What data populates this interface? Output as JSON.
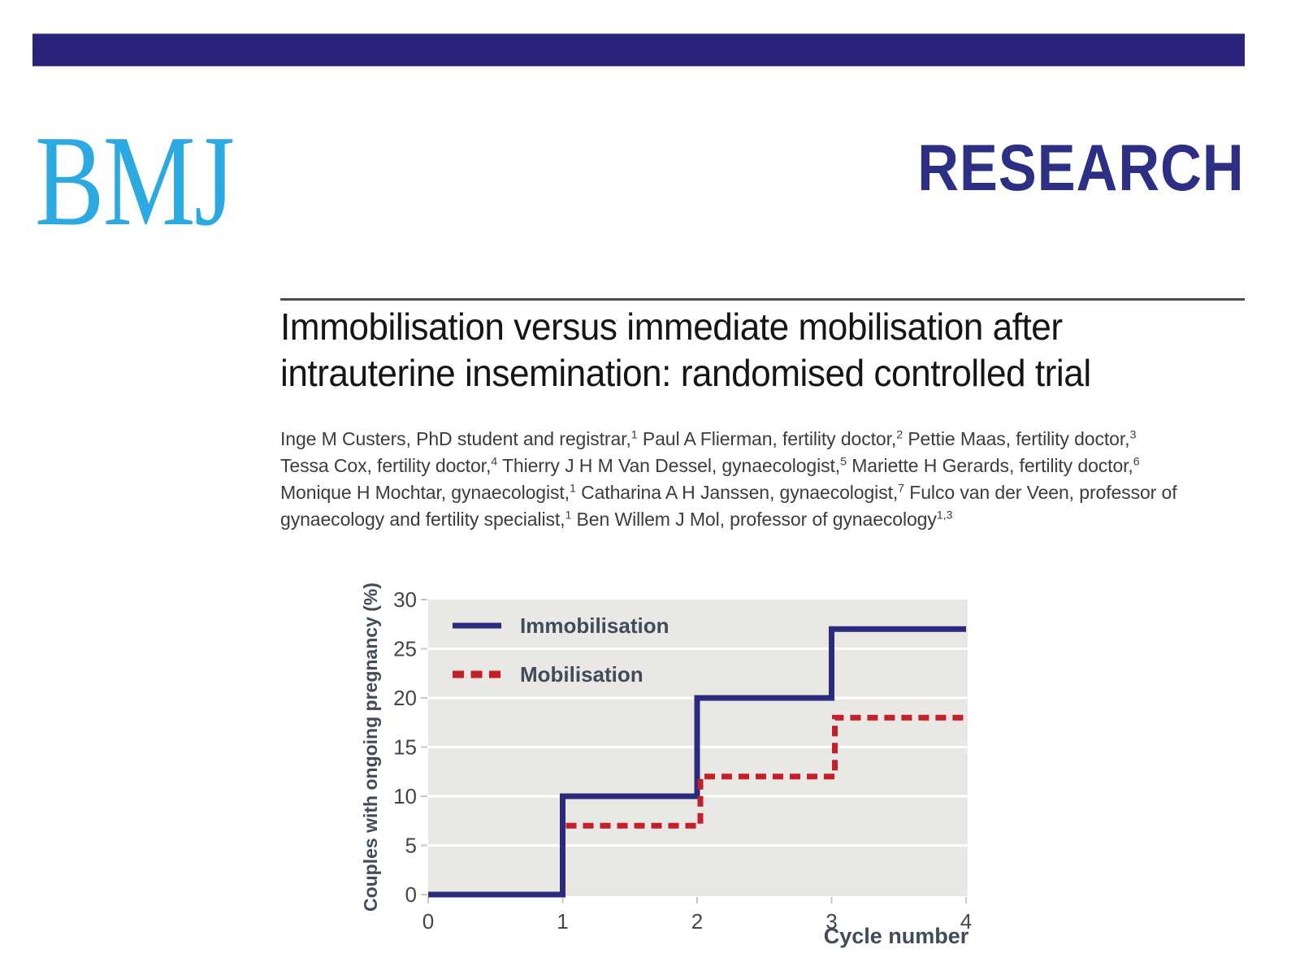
{
  "masthead": {
    "logo_text": "BMJ",
    "logo_color": "#2BA9E0",
    "section_label": "RESEARCH",
    "banner_color": "#292379"
  },
  "article": {
    "title_lines": [
      "Immobilisation versus immediate mobilisation after",
      "intrauterine insemination: randomised controlled trial"
    ],
    "author_lines": [
      [
        {
          "text": "Inge M Custers, PhD student and registrar,"
        },
        {
          "sup": "1"
        },
        {
          "text": " Paul A Flierman, fertility doctor,"
        },
        {
          "sup": "2"
        },
        {
          "text": " Pettie Maas, fertility doctor,"
        },
        {
          "sup": "3"
        }
      ],
      [
        {
          "text": "Tessa Cox, fertility doctor,"
        },
        {
          "sup": "4"
        },
        {
          "text": " Thierry J H M Van Dessel, gynaecologist,"
        },
        {
          "sup": "5"
        },
        {
          "text": " Mariette H Gerards, fertility doctor,"
        },
        {
          "sup": "6"
        }
      ],
      [
        {
          "text": "Monique H Mochtar, gynaecologist,"
        },
        {
          "sup": "1"
        },
        {
          "text": " Catharina A H Janssen, gynaecologist,"
        },
        {
          "sup": "7"
        },
        {
          "text": " Fulco van der Veen, professor of"
        }
      ],
      [
        {
          "text": "gynaecology and fertility specialist,"
        },
        {
          "sup": "1"
        },
        {
          "text": " Ben Willem J Mol, professor of gynaecology"
        },
        {
          "sup": "1,3"
        }
      ]
    ]
  },
  "chart_data": {
    "type": "line",
    "step": "post",
    "title": "",
    "xlabel": "Cycle number",
    "ylabel": "Couples with ongoing pregnancy (%)",
    "xlim": [
      0,
      4
    ],
    "ylim": [
      0,
      30
    ],
    "xticks": [
      0,
      1,
      2,
      3,
      4
    ],
    "yticks": [
      0,
      5,
      10,
      15,
      20,
      25,
      30
    ],
    "grid": "horizontal white gridlines on grey panel",
    "panel_color": "#e9e8e5",
    "gridline_color": "#ffffff",
    "tick_color": "#c9c8c4",
    "tick_label_color": "#46454d",
    "axis_label_color": "#414b5a",
    "legend_position": "top-left inside plot",
    "series": [
      {
        "name": "Immobilisation",
        "color": "#2b2b7d",
        "line_style": "solid",
        "vertices": [
          [
            0,
            0
          ],
          [
            1,
            0
          ],
          [
            1,
            10
          ],
          [
            2,
            10
          ],
          [
            2,
            20
          ],
          [
            3,
            20
          ],
          [
            3,
            27
          ],
          [
            4,
            27
          ]
        ],
        "cumulative_pct_by_cycle": {
          "1": 10,
          "2": 20,
          "3": 27,
          "4": 27
        }
      },
      {
        "name": "Mobilisation",
        "color": "#c3202a",
        "line_style": "dashed",
        "vertices": [
          [
            1,
            7
          ],
          [
            2,
            7
          ],
          [
            2,
            12
          ],
          [
            3,
            12
          ],
          [
            3,
            18
          ],
          [
            4,
            18
          ]
        ],
        "cumulative_pct_by_cycle": {
          "1": 7,
          "2": 12,
          "3": 18,
          "4": 18
        }
      }
    ]
  }
}
